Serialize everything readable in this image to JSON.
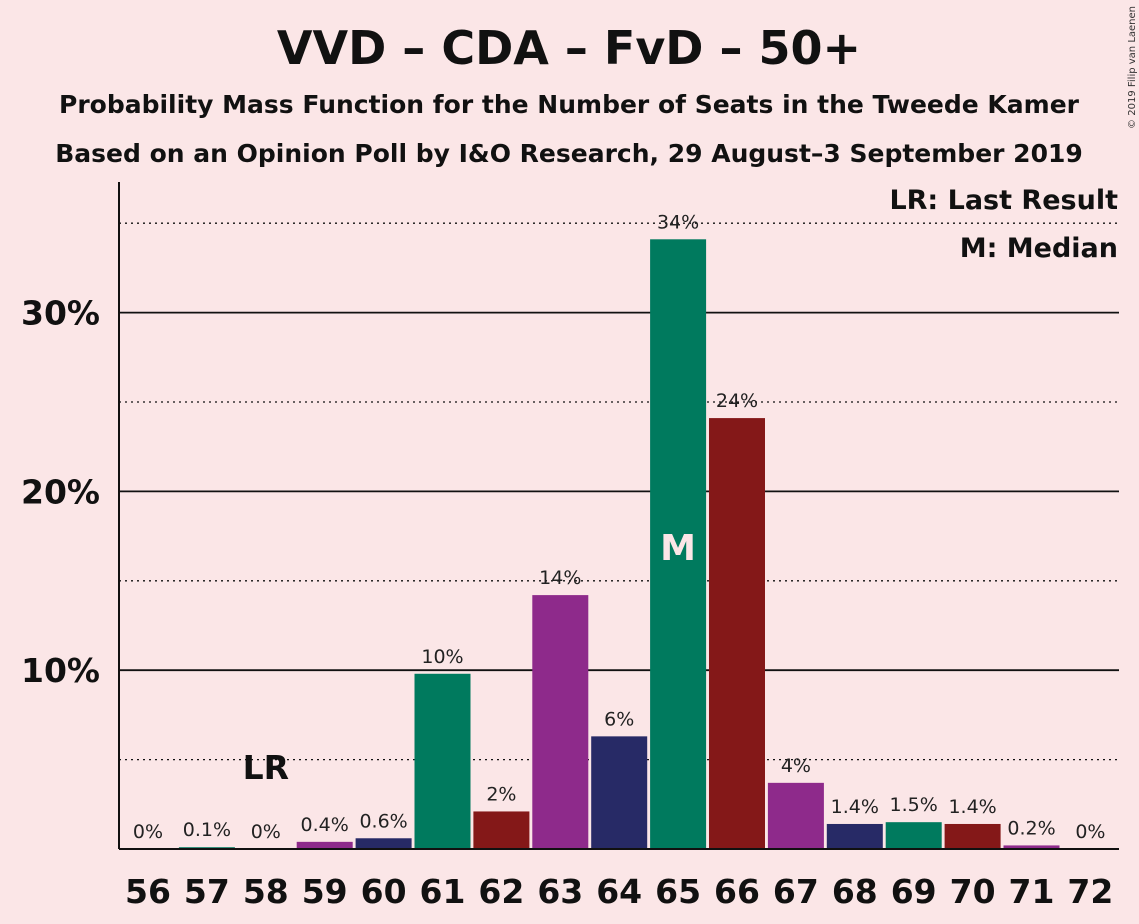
{
  "title": "VVD – CDA – FvD – 50+",
  "subtitle1": "Probability Mass Function for the Number of Seats in the Tweede Kamer",
  "subtitle2": "Based on an Opinion Poll by I&O Research, 29 August–3 September 2019",
  "copyright": "© 2019 Filip van Laenen",
  "legend": {
    "lr": "LR: Last Result",
    "median": "M: Median"
  },
  "markers": {
    "lr_text": "LR",
    "median_text": "M"
  },
  "colors": {
    "background": "#fbe6e7",
    "VVD": "#8e2a8b",
    "CDA": "#007a5e",
    "FvD": "#841818",
    "50PLUS": "#272a66"
  },
  "chart_data": {
    "type": "bar",
    "x": [
      56,
      57,
      58,
      59,
      60,
      61,
      62,
      63,
      64,
      65,
      66,
      67,
      68,
      69,
      70,
      71,
      72
    ],
    "values": [
      0,
      0.1,
      0,
      0.4,
      0.6,
      9.8,
      2.1,
      14.2,
      6.3,
      34.1,
      24.1,
      3.7,
      1.4,
      1.5,
      1.4,
      0.2,
      0
    ],
    "labels": [
      "0%",
      "0.1%",
      "0%",
      "0.4%",
      "0.6%",
      "10%",
      "2%",
      "14%",
      "6%",
      "34%",
      "24%",
      "4%",
      "1.4%",
      "1.5%",
      "1.4%",
      "0.2%",
      "0%"
    ],
    "bar_colors": [
      "#841818",
      "#007a5e",
      "#8e2a8b",
      "#8e2a8b",
      "#272a66",
      "#007a5e",
      "#841818",
      "#8e2a8b",
      "#272a66",
      "#007a5e",
      "#841818",
      "#8e2a8b",
      "#272a66",
      "#007a5e",
      "#841818",
      "#8e2a8b",
      "#272a66"
    ],
    "yticks": [
      10,
      20,
      30
    ],
    "ytick_labels": [
      "10%",
      "20%",
      "30%"
    ],
    "ylim": [
      0,
      37
    ],
    "last_result_seat": 58,
    "median_seat": 65,
    "grid": "solid at 10% steps, dotted at 5% steps"
  }
}
